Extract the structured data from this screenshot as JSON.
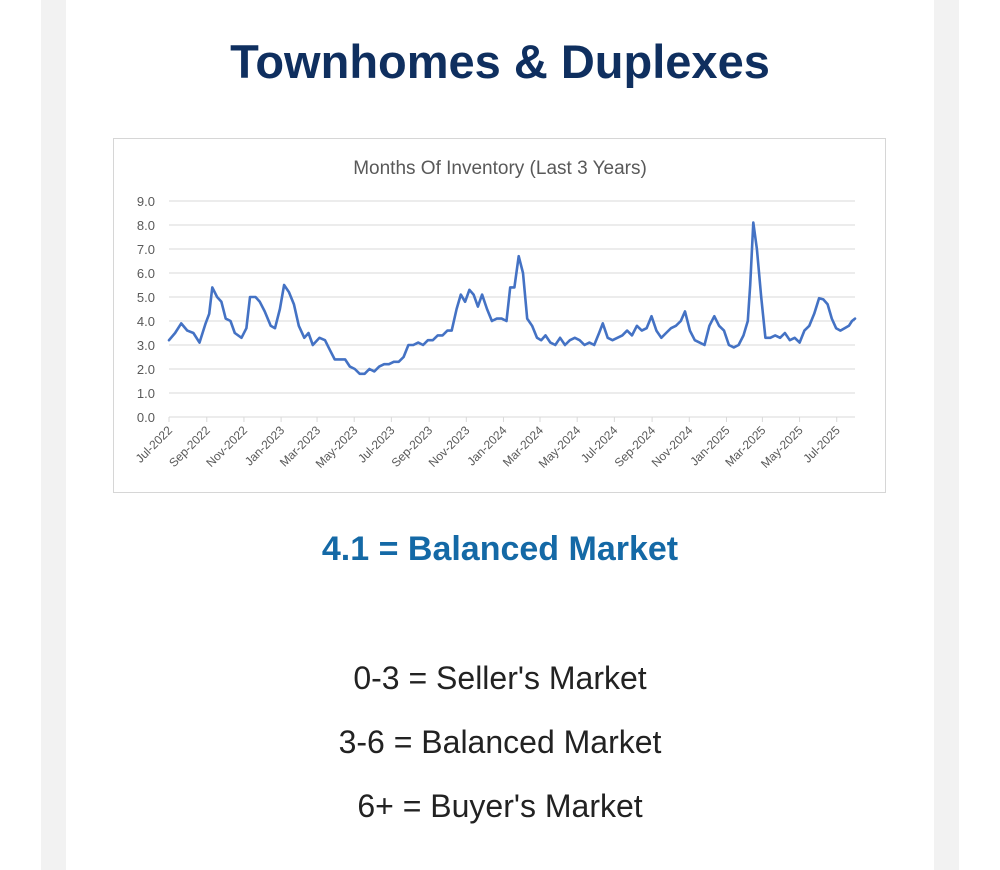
{
  "page": {
    "title": "Townhomes & Duplexes",
    "status_value": "4.1",
    "status_text": "4.1 = Balanced Market",
    "scale": [
      "0-3 = Seller's Market",
      "3-6 = Balanced Market",
      "6+ = Buyer's Market"
    ]
  },
  "colors": {
    "title": "#0f2f5f",
    "headline": "#1469a6",
    "series_line": "#4472c4",
    "gridline": "#d9d9d9",
    "axis_text": "#595959",
    "page_gutter": "#f2f2f2"
  },
  "chart_data": {
    "type": "line",
    "title": "Months Of Inventory (Last 3 Years)",
    "xlabel": "",
    "ylabel": "",
    "ylim": [
      0,
      9
    ],
    "yticks": [
      "0.0",
      "1.0",
      "2.0",
      "3.0",
      "4.0",
      "5.0",
      "6.0",
      "7.0",
      "8.0",
      "9.0"
    ],
    "grid": true,
    "legend": "none",
    "x_labels": [
      "Jul-2022",
      "Sep-2022",
      "Nov-2022",
      "Jan-2023",
      "Mar-2023",
      "May-2023",
      "Jul-2023",
      "Sep-2023",
      "Nov-2023",
      "Jan-2024",
      "Mar-2024",
      "May-2024",
      "Jul-2024",
      "Sep-2024",
      "Nov-2024",
      "Jan-2025",
      "Mar-2025",
      "May-2025",
      "Jul-2025"
    ],
    "x_range": [
      "2022-07-01",
      "2025-07-31"
    ],
    "series": [
      {
        "values": [
          [
            "2022-07-01",
            3.2
          ],
          [
            "2022-07-11",
            3.5
          ],
          [
            "2022-07-21",
            3.9
          ],
          [
            "2022-07-31",
            3.6
          ],
          [
            "2022-08-10",
            3.5
          ],
          [
            "2022-08-20",
            3.1
          ],
          [
            "2022-08-30",
            3.9
          ],
          [
            "2022-09-05",
            4.3
          ],
          [
            "2022-09-10",
            5.4
          ],
          [
            "2022-09-18",
            5.0
          ],
          [
            "2022-09-25",
            4.8
          ],
          [
            "2022-10-02",
            4.1
          ],
          [
            "2022-10-10",
            4.0
          ],
          [
            "2022-10-17",
            3.5
          ],
          [
            "2022-10-28",
            3.3
          ],
          [
            "2022-11-05",
            3.7
          ],
          [
            "2022-11-11",
            5.0
          ],
          [
            "2022-11-20",
            5.0
          ],
          [
            "2022-11-27",
            4.8
          ],
          [
            "2022-12-05",
            4.4
          ],
          [
            "2022-12-15",
            3.8
          ],
          [
            "2022-12-22",
            3.7
          ],
          [
            "2022-12-30",
            4.5
          ],
          [
            "2023-01-06",
            5.5
          ],
          [
            "2023-01-14",
            5.2
          ],
          [
            "2023-01-22",
            4.7
          ],
          [
            "2023-01-30",
            3.8
          ],
          [
            "2023-02-08",
            3.3
          ],
          [
            "2023-02-15",
            3.5
          ],
          [
            "2023-02-22",
            3.0
          ],
          [
            "2023-03-05",
            3.3
          ],
          [
            "2023-03-14",
            3.2
          ],
          [
            "2023-03-22",
            2.8
          ],
          [
            "2023-03-30",
            2.4
          ],
          [
            "2023-04-08",
            2.4
          ],
          [
            "2023-04-16",
            2.4
          ],
          [
            "2023-04-24",
            2.1
          ],
          [
            "2023-05-02",
            2.0
          ],
          [
            "2023-05-10",
            1.8
          ],
          [
            "2023-05-18",
            1.8
          ],
          [
            "2023-05-26",
            2.0
          ],
          [
            "2023-06-03",
            1.9
          ],
          [
            "2023-06-11",
            2.1
          ],
          [
            "2023-06-19",
            2.2
          ],
          [
            "2023-06-27",
            2.2
          ],
          [
            "2023-07-05",
            2.3
          ],
          [
            "2023-07-13",
            2.3
          ],
          [
            "2023-07-21",
            2.5
          ],
          [
            "2023-07-29",
            3.0
          ],
          [
            "2023-08-06",
            3.0
          ],
          [
            "2023-08-14",
            3.1
          ],
          [
            "2023-08-22",
            3.0
          ],
          [
            "2023-08-30",
            3.2
          ],
          [
            "2023-09-07",
            3.2
          ],
          [
            "2023-09-15",
            3.4
          ],
          [
            "2023-09-23",
            3.4
          ],
          [
            "2023-10-01",
            3.6
          ],
          [
            "2023-10-08",
            3.6
          ],
          [
            "2023-10-16",
            4.5
          ],
          [
            "2023-10-23",
            5.1
          ],
          [
            "2023-10-30",
            4.8
          ],
          [
            "2023-11-06",
            5.3
          ],
          [
            "2023-11-13",
            5.1
          ],
          [
            "2023-11-20",
            4.6
          ],
          [
            "2023-11-27",
            5.1
          ],
          [
            "2023-12-05",
            4.5
          ],
          [
            "2023-12-13",
            4.0
          ],
          [
            "2023-12-21",
            4.1
          ],
          [
            "2023-12-29",
            4.1
          ],
          [
            "2024-01-06",
            4.0
          ],
          [
            "2024-01-12",
            5.4
          ],
          [
            "2024-01-19",
            5.4
          ],
          [
            "2024-01-26",
            6.7
          ],
          [
            "2024-02-02",
            6.0
          ],
          [
            "2024-02-09",
            4.1
          ],
          [
            "2024-02-17",
            3.8
          ],
          [
            "2024-02-25",
            3.3
          ],
          [
            "2024-03-03",
            3.2
          ],
          [
            "2024-03-10",
            3.4
          ],
          [
            "2024-03-18",
            3.1
          ],
          [
            "2024-03-26",
            3.0
          ],
          [
            "2024-04-03",
            3.3
          ],
          [
            "2024-04-11",
            3.0
          ],
          [
            "2024-04-19",
            3.2
          ],
          [
            "2024-04-27",
            3.3
          ],
          [
            "2024-05-05",
            3.2
          ],
          [
            "2024-05-13",
            3.0
          ],
          [
            "2024-05-21",
            3.1
          ],
          [
            "2024-05-29",
            3.0
          ],
          [
            "2024-06-06",
            3.5
          ],
          [
            "2024-06-12",
            3.9
          ],
          [
            "2024-06-20",
            3.3
          ],
          [
            "2024-06-28",
            3.2
          ],
          [
            "2024-07-06",
            3.3
          ],
          [
            "2024-07-14",
            3.4
          ],
          [
            "2024-07-22",
            3.6
          ],
          [
            "2024-07-30",
            3.4
          ],
          [
            "2024-08-07",
            3.8
          ],
          [
            "2024-08-15",
            3.6
          ],
          [
            "2024-08-23",
            3.7
          ],
          [
            "2024-08-31",
            4.2
          ],
          [
            "2024-09-08",
            3.6
          ],
          [
            "2024-09-16",
            3.3
          ],
          [
            "2024-09-24",
            3.5
          ],
          [
            "2024-10-02",
            3.7
          ],
          [
            "2024-10-10",
            3.8
          ],
          [
            "2024-10-18",
            4.0
          ],
          [
            "2024-10-25",
            4.4
          ],
          [
            "2024-11-02",
            3.6
          ],
          [
            "2024-11-10",
            3.2
          ],
          [
            "2024-11-18",
            3.1
          ],
          [
            "2024-11-26",
            3.0
          ],
          [
            "2024-12-04",
            3.8
          ],
          [
            "2024-12-12",
            4.2
          ],
          [
            "2024-12-20",
            3.8
          ],
          [
            "2024-12-28",
            3.6
          ],
          [
            "2025-01-05",
            3.0
          ],
          [
            "2025-01-13",
            2.9
          ],
          [
            "2025-01-21",
            3.0
          ],
          [
            "2025-01-29",
            3.4
          ],
          [
            "2025-02-05",
            4.0
          ],
          [
            "2025-02-09",
            5.5
          ],
          [
            "2025-02-14",
            8.1
          ],
          [
            "2025-02-20",
            7.0
          ],
          [
            "2025-02-27",
            5.0
          ],
          [
            "2025-03-06",
            3.3
          ],
          [
            "2025-03-14",
            3.3
          ],
          [
            "2025-03-22",
            3.4
          ],
          [
            "2025-03-30",
            3.3
          ],
          [
            "2025-04-07",
            3.5
          ],
          [
            "2025-04-15",
            3.2
          ],
          [
            "2025-04-23",
            3.3
          ],
          [
            "2025-05-01",
            3.1
          ],
          [
            "2025-05-09",
            3.6
          ],
          [
            "2025-05-17",
            3.8
          ],
          [
            "2025-05-25",
            4.3
          ],
          [
            "2025-06-02",
            4.95
          ],
          [
            "2025-06-09",
            4.9
          ],
          [
            "2025-06-16",
            4.7
          ],
          [
            "2025-06-23",
            4.1
          ],
          [
            "2025-06-30",
            3.7
          ],
          [
            "2025-07-07",
            3.6
          ],
          [
            "2025-07-14",
            3.7
          ],
          [
            "2025-07-21",
            3.8
          ],
          [
            "2025-07-26",
            4.0
          ],
          [
            "2025-07-31",
            4.1
          ]
        ]
      }
    ]
  }
}
